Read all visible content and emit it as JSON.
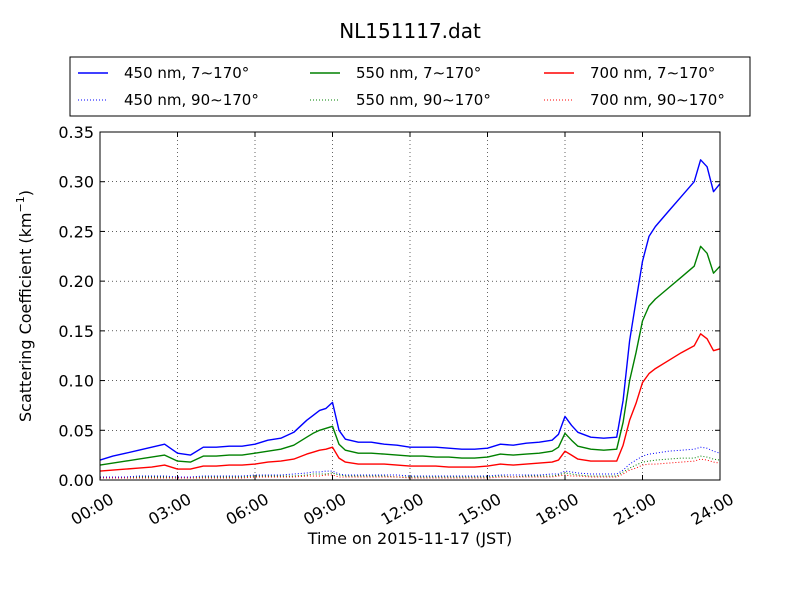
{
  "chart_data": {
    "type": "line",
    "title": "NL151117.dat",
    "xlabel": "Time on 2015-11-17 (JST)",
    "ylabel_main": "Scattering Coefficient (km",
    "ylabel_sup": "−1",
    "ylabel_close": ")",
    "xlim": [
      0,
      24
    ],
    "ylim": [
      0,
      0.35
    ],
    "x_ticks": [
      0,
      3,
      6,
      9,
      12,
      15,
      18,
      21,
      24
    ],
    "x_tick_labels": [
      "00:00",
      "03:00",
      "06:00",
      "09:00",
      "12:00",
      "15:00",
      "18:00",
      "21:00",
      "24:00"
    ],
    "y_ticks": [
      0,
      0.05,
      0.1,
      0.15,
      0.2,
      0.25,
      0.3,
      0.35
    ],
    "y_tick_labels": [
      "0.00",
      "0.05",
      "0.10",
      "0.15",
      "0.20",
      "0.25",
      "0.30",
      "0.35"
    ],
    "grid": true,
    "legend_placement": "top, above plot, 3 columns",
    "x_hours": [
      0.0,
      0.5,
      1.0,
      1.5,
      2.0,
      2.5,
      3.0,
      3.5,
      4.0,
      4.5,
      5.0,
      5.5,
      6.0,
      6.5,
      7.0,
      7.5,
      8.0,
      8.25,
      8.5,
      8.75,
      9.0,
      9.25,
      9.5,
      10.0,
      10.5,
      11.0,
      11.5,
      12.0,
      12.5,
      13.0,
      13.5,
      14.0,
      14.5,
      15.0,
      15.5,
      16.0,
      16.5,
      17.0,
      17.5,
      17.75,
      18.0,
      18.25,
      18.5,
      19.0,
      19.5,
      20.0,
      20.25,
      20.5,
      20.75,
      21.0,
      21.25,
      21.5,
      22.0,
      22.5,
      23.0,
      23.25,
      23.5,
      23.75,
      24.0
    ],
    "series": [
      {
        "name": "450 nm, 7∼170°",
        "color": "#0000ff",
        "style": "solid",
        "values": [
          0.02,
          0.024,
          0.027,
          0.03,
          0.033,
          0.036,
          0.027,
          0.025,
          0.033,
          0.033,
          0.034,
          0.034,
          0.036,
          0.04,
          0.042,
          0.048,
          0.06,
          0.065,
          0.07,
          0.072,
          0.078,
          0.05,
          0.041,
          0.038,
          0.038,
          0.036,
          0.035,
          0.033,
          0.033,
          0.033,
          0.032,
          0.031,
          0.031,
          0.032,
          0.036,
          0.035,
          0.037,
          0.038,
          0.04,
          0.046,
          0.064,
          0.055,
          0.048,
          0.043,
          0.042,
          0.043,
          0.08,
          0.14,
          0.18,
          0.22,
          0.245,
          0.255,
          0.27,
          0.285,
          0.3,
          0.322,
          0.315,
          0.29,
          0.298
        ]
      },
      {
        "name": "550 nm, 7∼170°",
        "color": "#008000",
        "style": "solid",
        "values": [
          0.015,
          0.017,
          0.019,
          0.021,
          0.023,
          0.025,
          0.019,
          0.018,
          0.024,
          0.024,
          0.025,
          0.025,
          0.027,
          0.029,
          0.031,
          0.035,
          0.043,
          0.047,
          0.05,
          0.052,
          0.054,
          0.036,
          0.03,
          0.027,
          0.027,
          0.026,
          0.025,
          0.024,
          0.024,
          0.023,
          0.023,
          0.022,
          0.022,
          0.023,
          0.026,
          0.025,
          0.026,
          0.027,
          0.029,
          0.033,
          0.047,
          0.04,
          0.034,
          0.031,
          0.03,
          0.031,
          0.058,
          0.1,
          0.128,
          0.16,
          0.175,
          0.182,
          0.193,
          0.204,
          0.215,
          0.235,
          0.228,
          0.208,
          0.215
        ]
      },
      {
        "name": "700 nm, 7∼170°",
        "color": "#ff0000",
        "style": "solid",
        "values": [
          0.009,
          0.01,
          0.011,
          0.012,
          0.013,
          0.015,
          0.011,
          0.011,
          0.014,
          0.014,
          0.015,
          0.015,
          0.016,
          0.018,
          0.019,
          0.021,
          0.026,
          0.028,
          0.03,
          0.031,
          0.033,
          0.022,
          0.018,
          0.016,
          0.016,
          0.016,
          0.015,
          0.014,
          0.014,
          0.014,
          0.013,
          0.013,
          0.013,
          0.014,
          0.016,
          0.015,
          0.016,
          0.017,
          0.018,
          0.02,
          0.029,
          0.025,
          0.021,
          0.019,
          0.019,
          0.019,
          0.035,
          0.06,
          0.077,
          0.098,
          0.107,
          0.112,
          0.12,
          0.128,
          0.135,
          0.147,
          0.142,
          0.13,
          0.132
        ]
      },
      {
        "name": "450 nm, 90∼170°",
        "color": "#0000ff",
        "style": "dotted",
        "values": [
          0.003,
          0.003,
          0.003,
          0.004,
          0.004,
          0.004,
          0.003,
          0.003,
          0.004,
          0.004,
          0.004,
          0.004,
          0.005,
          0.005,
          0.005,
          0.006,
          0.007,
          0.008,
          0.008,
          0.009,
          0.009,
          0.006,
          0.005,
          0.005,
          0.005,
          0.005,
          0.005,
          0.004,
          0.004,
          0.004,
          0.004,
          0.004,
          0.004,
          0.004,
          0.005,
          0.005,
          0.005,
          0.005,
          0.006,
          0.006,
          0.009,
          0.008,
          0.007,
          0.006,
          0.006,
          0.006,
          0.01,
          0.016,
          0.02,
          0.024,
          0.026,
          0.027,
          0.029,
          0.03,
          0.031,
          0.033,
          0.032,
          0.029,
          0.027
        ]
      },
      {
        "name": "550 nm, 90∼170°",
        "color": "#008000",
        "style": "dotted",
        "values": [
          0.002,
          0.002,
          0.002,
          0.003,
          0.003,
          0.003,
          0.002,
          0.002,
          0.003,
          0.003,
          0.003,
          0.003,
          0.004,
          0.004,
          0.004,
          0.004,
          0.005,
          0.006,
          0.006,
          0.006,
          0.007,
          0.005,
          0.004,
          0.004,
          0.004,
          0.004,
          0.003,
          0.003,
          0.003,
          0.003,
          0.003,
          0.003,
          0.003,
          0.003,
          0.004,
          0.003,
          0.004,
          0.004,
          0.004,
          0.005,
          0.007,
          0.006,
          0.005,
          0.004,
          0.004,
          0.004,
          0.008,
          0.012,
          0.015,
          0.018,
          0.019,
          0.02,
          0.021,
          0.022,
          0.022,
          0.024,
          0.023,
          0.021,
          0.02
        ]
      },
      {
        "name": "700 nm, 90∼170°",
        "color": "#ff0000",
        "style": "dotted",
        "values": [
          0.002,
          0.002,
          0.002,
          0.002,
          0.002,
          0.002,
          0.002,
          0.002,
          0.002,
          0.002,
          0.002,
          0.002,
          0.003,
          0.003,
          0.003,
          0.003,
          0.004,
          0.004,
          0.004,
          0.005,
          0.005,
          0.003,
          0.003,
          0.003,
          0.003,
          0.003,
          0.003,
          0.002,
          0.002,
          0.002,
          0.002,
          0.002,
          0.002,
          0.002,
          0.003,
          0.003,
          0.003,
          0.003,
          0.003,
          0.004,
          0.005,
          0.004,
          0.004,
          0.003,
          0.003,
          0.003,
          0.006,
          0.01,
          0.012,
          0.015,
          0.016,
          0.016,
          0.017,
          0.018,
          0.019,
          0.021,
          0.02,
          0.018,
          0.017
        ]
      }
    ],
    "legend_order": [
      0,
      1,
      2,
      3,
      4,
      5
    ]
  }
}
